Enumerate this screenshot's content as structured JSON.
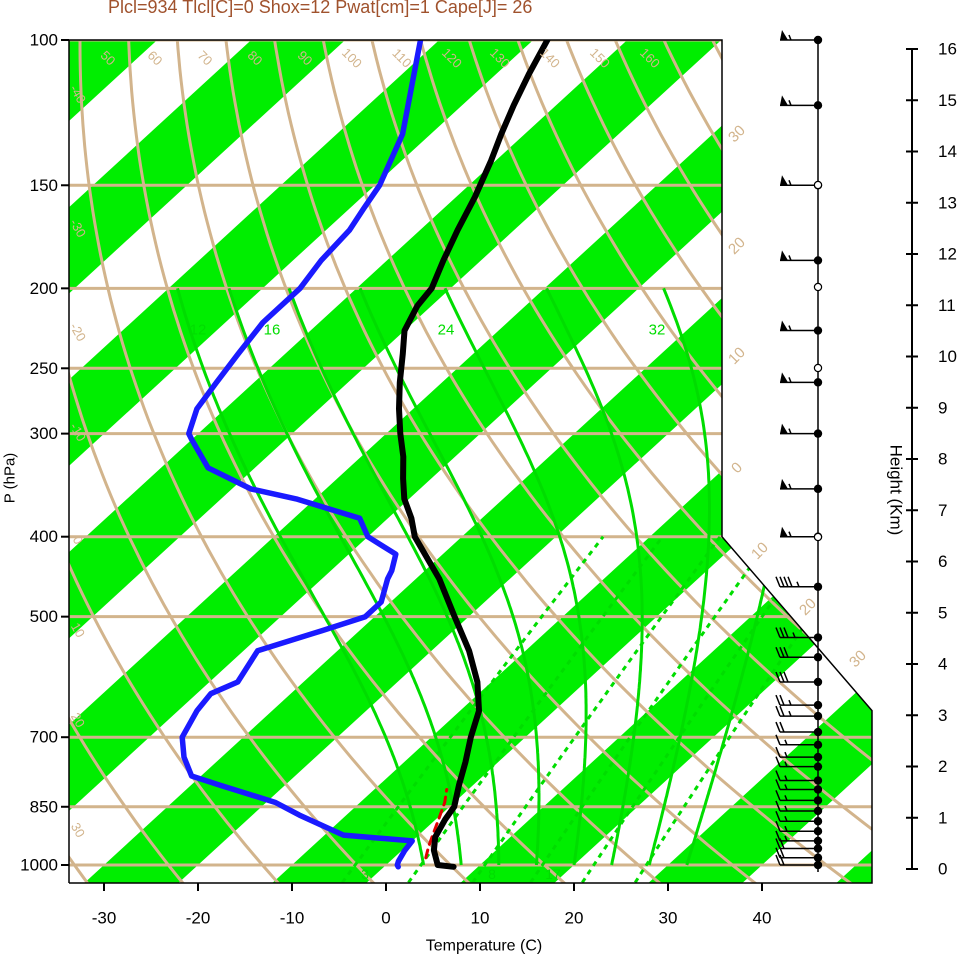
{
  "chart_data": {
    "type": "line",
    "subtype": "skew-t log-p diagram",
    "title": "Plcl=934 Tlcl[C]=0 Shox=12 Pwat[cm]=1 Cape[J]= 26",
    "xlabel": "Temperature (C)",
    "ylabel": "P (hPa)",
    "y2label": "Height (Km)",
    "xlim": [
      -33,
      50
    ],
    "ylim": [
      1050,
      100
    ],
    "y_scale": "log",
    "x_ticks": [
      "-30",
      "-20",
      "-10",
      "0",
      "10",
      "20",
      "30",
      "40"
    ],
    "x_tick_values": [
      -30,
      -20,
      -10,
      0,
      10,
      20,
      30,
      40
    ],
    "p_ticks": [
      "1000",
      "850",
      "700",
      "500",
      "400",
      "300",
      "250",
      "200",
      "150",
      "100"
    ],
    "p_tick_values": [
      1000,
      850,
      700,
      500,
      400,
      300,
      250,
      200,
      150,
      100
    ],
    "height_ticks": [
      "0",
      "1",
      "2",
      "3",
      "4",
      "5",
      "6",
      "7",
      "8",
      "9",
      "10",
      "11",
      "12",
      "13",
      "14",
      "15",
      "16"
    ],
    "isotherm_labels": [
      "-40",
      "-30",
      "-20",
      "-10",
      "0",
      "10",
      "20",
      "30"
    ],
    "dry_adiabat_labels": [
      "50",
      "60",
      "70",
      "80",
      "90",
      "100",
      "110",
      "120",
      "130",
      "140",
      "150",
      "160"
    ],
    "moist_adiabat_labels": [
      "12",
      "16",
      "24",
      "32"
    ],
    "mixing_ratio_labels": [
      "3",
      "8",
      "17"
    ],
    "colors": {
      "temperature": "#000000",
      "dewpoint": "#1a1aff",
      "parcel": "#e00000",
      "isotherm_band": "#00ee00",
      "grid": "#d2b48c",
      "moist_adiabat": "#00dd00",
      "title": "#a0522d"
    },
    "series": [
      {
        "name": "temperature",
        "p": [
          1005,
          1000,
          960,
          925,
          880,
          850,
          800,
          750,
          700,
          650,
          600,
          550,
          500,
          450,
          400,
          380,
          360,
          340,
          320,
          300,
          280,
          260,
          240,
          225,
          210,
          200,
          185,
          170,
          155,
          140,
          130,
          120,
          110,
          100
        ],
        "t": [
          7.4,
          5.5,
          3.4,
          2.0,
          1.0,
          0.5,
          -1.5,
          -3.5,
          -5.8,
          -8.0,
          -11.5,
          -16.0,
          -21.5,
          -27.5,
          -35.0,
          -37.5,
          -40.5,
          -43.0,
          -45.5,
          -48.5,
          -51.5,
          -54.5,
          -57.5,
          -60.0,
          -61.5,
          -62.0,
          -64.0,
          -66.0,
          -68.0,
          -70.5,
          -72.5,
          -74.5,
          -76.5,
          -78.5
        ]
      },
      {
        "name": "dewpoint",
        "p": [
          1005,
          1000,
          990,
          960,
          935,
          920,
          870,
          840,
          800,
          780,
          740,
          700,
          650,
          620,
          600,
          550,
          520,
          500,
          480,
          450,
          440,
          420,
          400,
          380,
          360,
          350,
          330,
          305,
          300,
          280,
          260,
          240,
          220,
          200,
          185,
          170,
          160,
          150,
          130,
          100
        ],
        "t": [
          1.5,
          1.2,
          0.9,
          0.3,
          0.0,
          -8.0,
          -15.0,
          -19.0,
          -27.0,
          -31.0,
          -34.0,
          -36.5,
          -38.0,
          -38.5,
          -37.0,
          -38.5,
          -34.0,
          -31.0,
          -31.0,
          -33.0,
          -33.5,
          -35.0,
          -40.0,
          -43.0,
          -52.0,
          -58.0,
          -65.0,
          -70.0,
          -71.0,
          -73.0,
          -74.0,
          -75.0,
          -76.0,
          -76.0,
          -77.0,
          -77.5,
          -78.5,
          -79.5,
          -83.0,
          -92.0
        ]
      },
      {
        "name": "parcel",
        "p": [
          980,
          950,
          920,
          880,
          840,
          810
        ],
        "t": [
          3.4,
          2.4,
          1.5,
          0.3,
          -1.0,
          -2.3
        ]
      }
    ],
    "wind_barbs": [
      {
        "p": 1000,
        "speed_kt": 20
      },
      {
        "p": 980,
        "speed_kt": 20
      },
      {
        "p": 955,
        "speed_kt": 20
      },
      {
        "p": 935,
        "speed_kt": 15
      },
      {
        "p": 910,
        "speed_kt": 15
      },
      {
        "p": 885,
        "speed_kt": 15
      },
      {
        "p": 860,
        "speed_kt": 15
      },
      {
        "p": 835,
        "speed_kt": 15
      },
      {
        "p": 810,
        "speed_kt": 15
      },
      {
        "p": 790,
        "speed_kt": 15
      },
      {
        "p": 760,
        "speed_kt": 15
      },
      {
        "p": 740,
        "speed_kt": 15
      },
      {
        "p": 715,
        "speed_kt": 15
      },
      {
        "p": 690,
        "speed_kt": 20
      },
      {
        "p": 660,
        "speed_kt": 25
      },
      {
        "p": 640,
        "speed_kt": 25
      },
      {
        "p": 600,
        "speed_kt": 30
      },
      {
        "p": 560,
        "speed_kt": 30
      },
      {
        "p": 530,
        "speed_kt": 35
      },
      {
        "p": 460,
        "speed_kt": 45
      },
      {
        "p": 400,
        "speed_kt": 55
      },
      {
        "p": 350,
        "speed_kt": 55
      },
      {
        "p": 300,
        "speed_kt": 55
      },
      {
        "p": 260,
        "speed_kt": 55
      },
      {
        "p": 225,
        "speed_kt": 55
      },
      {
        "p": 185,
        "speed_kt": 55
      },
      {
        "p": 150,
        "speed_kt": 55
      },
      {
        "p": 120,
        "speed_kt": 55
      },
      {
        "p": 100,
        "speed_kt": 55
      }
    ]
  }
}
